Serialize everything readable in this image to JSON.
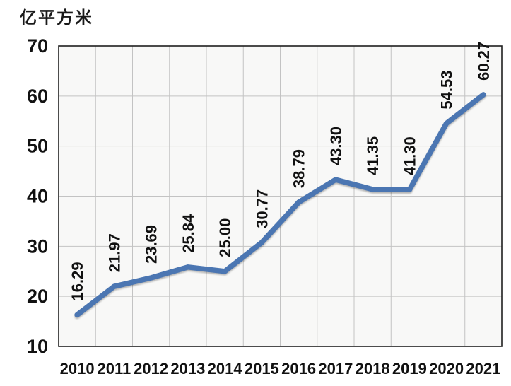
{
  "chart_data": {
    "type": "line",
    "title": "亿平方米",
    "categories": [
      "2010",
      "2011",
      "2012",
      "2013",
      "2014",
      "2015",
      "2016",
      "2017",
      "2018",
      "2019",
      "2020",
      "2021"
    ],
    "values": [
      16.29,
      21.97,
      23.69,
      25.84,
      25.0,
      30.77,
      38.79,
      43.3,
      41.35,
      41.3,
      54.53,
      60.27
    ],
    "data_labels": [
      "16.29",
      "21.97",
      "23.69",
      "25.84",
      "25.00",
      "30.77",
      "38.79",
      "43.30",
      "41.35",
      "41.30",
      "54.53",
      "60.27"
    ],
    "yticks": [
      "70",
      "60",
      "50",
      "40",
      "30",
      "20",
      "10"
    ],
    "ylim": [
      10,
      70
    ],
    "ytick_interval": 10,
    "xlabel": "",
    "ylabel": "亿平方米",
    "grid": true,
    "legend_position": "none",
    "data_label_rotation": -90,
    "colors": {
      "line": "#4b76b2",
      "plot_background": "#f8f8f7",
      "gridline": "#c3c3c3",
      "plot_border": "#1f1f1f",
      "label_text": "#111111",
      "page_background": "#ffffff"
    }
  }
}
